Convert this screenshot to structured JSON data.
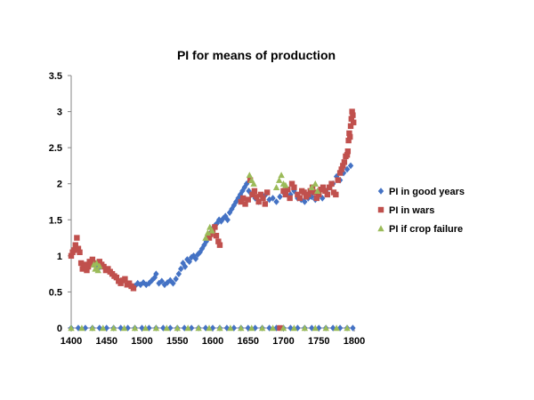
{
  "chart_data": {
    "type": "scatter",
    "title": "PI for means of production",
    "xlabel": "",
    "ylabel": "",
    "xlim": [
      1400,
      1800
    ],
    "ylim": [
      0,
      3.5
    ],
    "x_ticks": [
      "1400",
      "1450",
      "1500",
      "1550",
      "1600",
      "1650",
      "1700",
      "1750",
      "1800"
    ],
    "y_ticks": [
      "0",
      "0.5",
      "1",
      "1.5",
      "2",
      "2.5",
      "3",
      "3.5"
    ],
    "grid": false,
    "legend_position": "right",
    "series": [
      {
        "name": "PI in good years",
        "marker": "diamond",
        "color": "#4472C4",
        "points": [
          [
            1435,
            0.85
          ],
          [
            1438,
            0.82
          ],
          [
            1490,
            0.58
          ],
          [
            1494,
            0.62
          ],
          [
            1498,
            0.6
          ],
          [
            1502,
            0.63
          ],
          [
            1506,
            0.6
          ],
          [
            1510,
            0.62
          ],
          [
            1514,
            0.66
          ],
          [
            1518,
            0.7
          ],
          [
            1520,
            0.75
          ],
          [
            1524,
            0.62
          ],
          [
            1528,
            0.65
          ],
          [
            1532,
            0.6
          ],
          [
            1536,
            0.63
          ],
          [
            1540,
            0.66
          ],
          [
            1544,
            0.62
          ],
          [
            1548,
            0.68
          ],
          [
            1552,
            0.75
          ],
          [
            1555,
            0.82
          ],
          [
            1558,
            0.9
          ],
          [
            1561,
            0.85
          ],
          [
            1564,
            0.95
          ],
          [
            1567,
            0.92
          ],
          [
            1570,
            0.98
          ],
          [
            1573,
            1.0
          ],
          [
            1576,
            0.96
          ],
          [
            1579,
            1.02
          ],
          [
            1582,
            1.05
          ],
          [
            1585,
            1.1
          ],
          [
            1588,
            1.15
          ],
          [
            1591,
            1.2
          ],
          [
            1594,
            1.28
          ],
          [
            1597,
            1.32
          ],
          [
            1600,
            1.38
          ],
          [
            1603,
            1.42
          ],
          [
            1606,
            1.45
          ],
          [
            1609,
            1.5
          ],
          [
            1612,
            1.48
          ],
          [
            1615,
            1.52
          ],
          [
            1618,
            1.55
          ],
          [
            1621,
            1.5
          ],
          [
            1624,
            1.6
          ],
          [
            1627,
            1.65
          ],
          [
            1630,
            1.7
          ],
          [
            1633,
            1.75
          ],
          [
            1636,
            1.8
          ],
          [
            1639,
            1.85
          ],
          [
            1642,
            1.9
          ],
          [
            1645,
            1.95
          ],
          [
            1648,
            2.0
          ],
          [
            1651,
            1.9
          ],
          [
            1655,
            1.85
          ],
          [
            1660,
            1.8
          ],
          [
            1665,
            1.75
          ],
          [
            1670,
            1.82
          ],
          [
            1675,
            1.85
          ],
          [
            1680,
            1.78
          ],
          [
            1685,
            1.8
          ],
          [
            1690,
            1.75
          ],
          [
            1695,
            1.82
          ],
          [
            1700,
            1.88
          ],
          [
            1705,
            1.92
          ],
          [
            1710,
            1.85
          ],
          [
            1715,
            1.9
          ],
          [
            1720,
            1.8
          ],
          [
            1725,
            1.78
          ],
          [
            1730,
            1.75
          ],
          [
            1735,
            1.8
          ],
          [
            1740,
            1.82
          ],
          [
            1745,
            1.78
          ],
          [
            1750,
            1.85
          ],
          [
            1755,
            1.8
          ],
          [
            1760,
            1.9
          ],
          [
            1765,
            1.95
          ],
          [
            1770,
            2.0
          ],
          [
            1775,
            2.1
          ],
          [
            1780,
            2.05
          ],
          [
            1785,
            2.15
          ],
          [
            1790,
            2.2
          ],
          [
            1795,
            2.25
          ],
          [
            1400,
            0
          ],
          [
            1410,
            0
          ],
          [
            1420,
            0
          ],
          [
            1430,
            0
          ],
          [
            1440,
            0
          ],
          [
            1450,
            0
          ],
          [
            1460,
            0
          ],
          [
            1470,
            0
          ],
          [
            1480,
            0
          ],
          [
            1490,
            0
          ],
          [
            1500,
            0
          ],
          [
            1510,
            0
          ],
          [
            1520,
            0
          ],
          [
            1530,
            0
          ],
          [
            1540,
            0
          ],
          [
            1550,
            0
          ],
          [
            1560,
            0
          ],
          [
            1570,
            0
          ],
          [
            1580,
            0
          ],
          [
            1590,
            0
          ],
          [
            1600,
            0
          ],
          [
            1610,
            0
          ],
          [
            1620,
            0
          ],
          [
            1630,
            0
          ],
          [
            1640,
            0
          ],
          [
            1650,
            0
          ],
          [
            1660,
            0
          ],
          [
            1670,
            0
          ],
          [
            1680,
            0
          ],
          [
            1690,
            0
          ],
          [
            1700,
            0
          ],
          [
            1710,
            0
          ],
          [
            1720,
            0
          ],
          [
            1730,
            0
          ],
          [
            1740,
            0
          ],
          [
            1750,
            0
          ],
          [
            1760,
            0
          ],
          [
            1770,
            0
          ],
          [
            1780,
            0
          ],
          [
            1790,
            0
          ],
          [
            1798,
            0
          ]
        ]
      },
      {
        "name": "PI in wars",
        "marker": "square",
        "color": "#C0504D",
        "points": [
          [
            1400,
            1.0
          ],
          [
            1402,
            1.05
          ],
          [
            1404,
            1.08
          ],
          [
            1406,
            1.15
          ],
          [
            1408,
            1.25
          ],
          [
            1410,
            1.1
          ],
          [
            1412,
            1.05
          ],
          [
            1414,
            0.9
          ],
          [
            1416,
            0.82
          ],
          [
            1418,
            0.85
          ],
          [
            1420,
            0.88
          ],
          [
            1422,
            0.8
          ],
          [
            1424,
            0.85
          ],
          [
            1426,
            0.92
          ],
          [
            1428,
            0.88
          ],
          [
            1430,
            0.95
          ],
          [
            1432,
            0.9
          ],
          [
            1440,
            0.92
          ],
          [
            1443,
            0.88
          ],
          [
            1446,
            0.85
          ],
          [
            1449,
            0.8
          ],
          [
            1452,
            0.82
          ],
          [
            1455,
            0.78
          ],
          [
            1458,
            0.75
          ],
          [
            1461,
            0.72
          ],
          [
            1464,
            0.7
          ],
          [
            1467,
            0.65
          ],
          [
            1470,
            0.62
          ],
          [
            1473,
            0.66
          ],
          [
            1476,
            0.68
          ],
          [
            1479,
            0.6
          ],
          [
            1482,
            0.62
          ],
          [
            1485,
            0.58
          ],
          [
            1488,
            0.55
          ],
          [
            1595,
            1.25
          ],
          [
            1597,
            1.3
          ],
          [
            1600,
            1.35
          ],
          [
            1603,
            1.4
          ],
          [
            1605,
            1.28
          ],
          [
            1608,
            1.2
          ],
          [
            1610,
            1.15
          ],
          [
            1640,
            1.75
          ],
          [
            1643,
            1.8
          ],
          [
            1646,
            1.72
          ],
          [
            1650,
            1.78
          ],
          [
            1653,
            2.05
          ],
          [
            1656,
            1.85
          ],
          [
            1659,
            1.9
          ],
          [
            1662,
            1.82
          ],
          [
            1665,
            1.75
          ],
          [
            1668,
            1.85
          ],
          [
            1671,
            1.8
          ],
          [
            1674,
            1.72
          ],
          [
            1677,
            1.88
          ],
          [
            1700,
            1.9
          ],
          [
            1703,
            1.85
          ],
          [
            1706,
            1.92
          ],
          [
            1709,
            1.8
          ],
          [
            1712,
            2.0
          ],
          [
            1715,
            1.95
          ],
          [
            1720,
            1.85
          ],
          [
            1723,
            1.8
          ],
          [
            1726,
            1.9
          ],
          [
            1729,
            1.88
          ],
          [
            1732,
            1.82
          ],
          [
            1735,
            1.85
          ],
          [
            1738,
            1.9
          ],
          [
            1741,
            1.95
          ],
          [
            1744,
            1.88
          ],
          [
            1747,
            1.8
          ],
          [
            1750,
            1.85
          ],
          [
            1753,
            1.92
          ],
          [
            1756,
            1.95
          ],
          [
            1759,
            1.9
          ],
          [
            1762,
            1.85
          ],
          [
            1765,
            1.95
          ],
          [
            1768,
            2.0
          ],
          [
            1771,
            1.88
          ],
          [
            1774,
            1.85
          ],
          [
            1777,
            2.05
          ],
          [
            1780,
            2.15
          ],
          [
            1782,
            2.2
          ],
          [
            1784,
            2.25
          ],
          [
            1786,
            2.3
          ],
          [
            1788,
            2.38
          ],
          [
            1790,
            2.4
          ],
          [
            1791,
            2.45
          ],
          [
            1792,
            2.6
          ],
          [
            1793,
            2.7
          ],
          [
            1794,
            2.65
          ],
          [
            1795,
            2.8
          ],
          [
            1796,
            2.9
          ],
          [
            1797,
            3.0
          ],
          [
            1798,
            2.95
          ],
          [
            1799,
            2.85
          ],
          [
            1695,
            0
          ]
        ]
      },
      {
        "name": "PI if crop failure",
        "marker": "triangle",
        "color": "#9BBB59",
        "points": [
          [
            1432,
            0.88
          ],
          [
            1434,
            0.82
          ],
          [
            1436,
            0.9
          ],
          [
            1438,
            0.8
          ],
          [
            1440,
            0.86
          ],
          [
            1590,
            1.25
          ],
          [
            1593,
            1.32
          ],
          [
            1596,
            1.4
          ],
          [
            1599,
            1.35
          ],
          [
            1652,
            2.12
          ],
          [
            1655,
            2.05
          ],
          [
            1658,
            2.0
          ],
          [
            1690,
            1.95
          ],
          [
            1694,
            2.05
          ],
          [
            1697,
            2.12
          ],
          [
            1700,
            2.0
          ],
          [
            1703,
            1.98
          ],
          [
            1740,
            1.95
          ],
          [
            1745,
            2.0
          ],
          [
            1748,
            1.9
          ],
          [
            1400,
            0
          ],
          [
            1415,
            0
          ],
          [
            1430,
            0
          ],
          [
            1445,
            0
          ],
          [
            1460,
            0
          ],
          [
            1475,
            0
          ],
          [
            1490,
            0
          ],
          [
            1505,
            0
          ],
          [
            1520,
            0
          ],
          [
            1535,
            0
          ],
          [
            1550,
            0
          ],
          [
            1565,
            0
          ],
          [
            1580,
            0
          ],
          [
            1595,
            0
          ],
          [
            1610,
            0
          ],
          [
            1625,
            0
          ],
          [
            1640,
            0
          ],
          [
            1655,
            0
          ],
          [
            1670,
            0
          ],
          [
            1685,
            0
          ],
          [
            1700,
            0
          ],
          [
            1715,
            0
          ],
          [
            1730,
            0
          ],
          [
            1745,
            0
          ],
          [
            1760,
            0
          ],
          [
            1775,
            0
          ],
          [
            1790,
            0
          ]
        ]
      }
    ]
  }
}
